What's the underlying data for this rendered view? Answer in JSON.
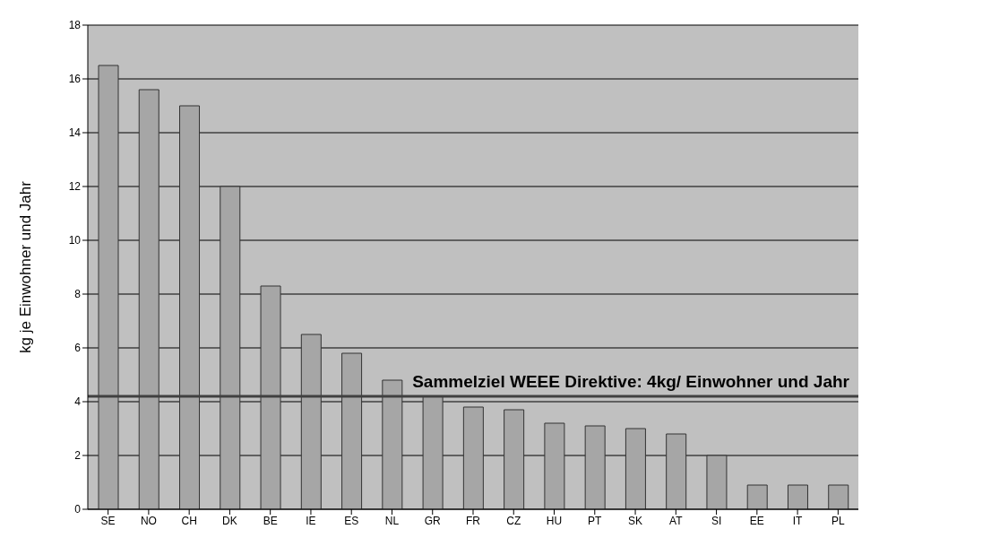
{
  "chart_data": {
    "type": "bar",
    "ylabel": "kg je Einwohner und Jahr",
    "categories": [
      "SE",
      "NO",
      "CH",
      "DK",
      "BE",
      "IE",
      "ES",
      "NL",
      "GR",
      "FR",
      "CZ",
      "HU",
      "PT",
      "SK",
      "AT",
      "SI",
      "EE",
      "IT",
      "PL"
    ],
    "values": [
      16.5,
      15.6,
      15.0,
      12.0,
      8.3,
      6.5,
      5.8,
      4.8,
      4.2,
      3.8,
      3.7,
      3.2,
      3.1,
      3.0,
      2.8,
      2.0,
      0.9,
      0.9,
      0.9
    ],
    "color": "#a6a6a6",
    "ylim": [
      0,
      18
    ],
    "yticks": [
      0,
      2,
      4,
      6,
      8,
      10,
      12,
      14,
      16,
      18
    ],
    "grid": "y",
    "ref_lines": [
      {
        "axis": "y",
        "value": 4.2,
        "label": "Sammelziel WEEE Direktive: 4kg/ Einwohner und Jahr",
        "color": "#404040"
      }
    ]
  }
}
